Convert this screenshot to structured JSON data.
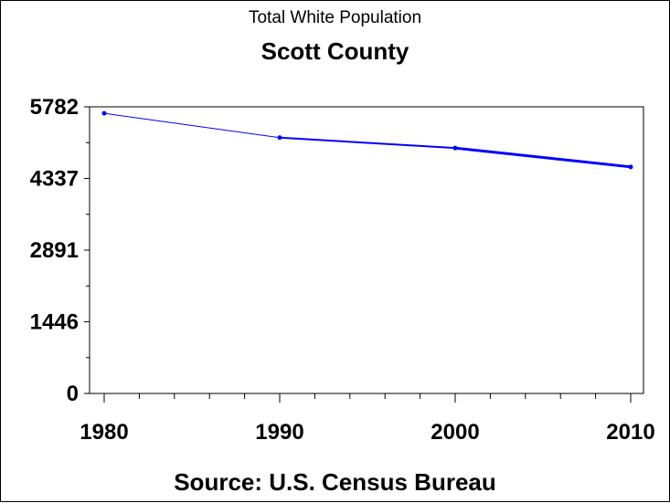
{
  "chart_data": {
    "type": "line",
    "subtitle": "Total White Population",
    "title": "Scott County",
    "source": "Source: U.S. Census Bureau",
    "x": [
      1980,
      1990,
      2000,
      2010
    ],
    "series": [
      {
        "values": [
          5650,
          5160,
          4950,
          4570
        ]
      }
    ],
    "xlim": [
      1980,
      2010
    ],
    "ylim": [
      0,
      5782
    ],
    "x_ticks": [
      "1980",
      "1990",
      "2000",
      "2010"
    ],
    "y_ticks": [
      "0",
      "1446",
      "2891",
      "4337",
      "5782"
    ],
    "y_tick_values": [
      0,
      1446,
      2891,
      4337,
      5782
    ],
    "grid": false,
    "line_color": "#0000ff"
  }
}
